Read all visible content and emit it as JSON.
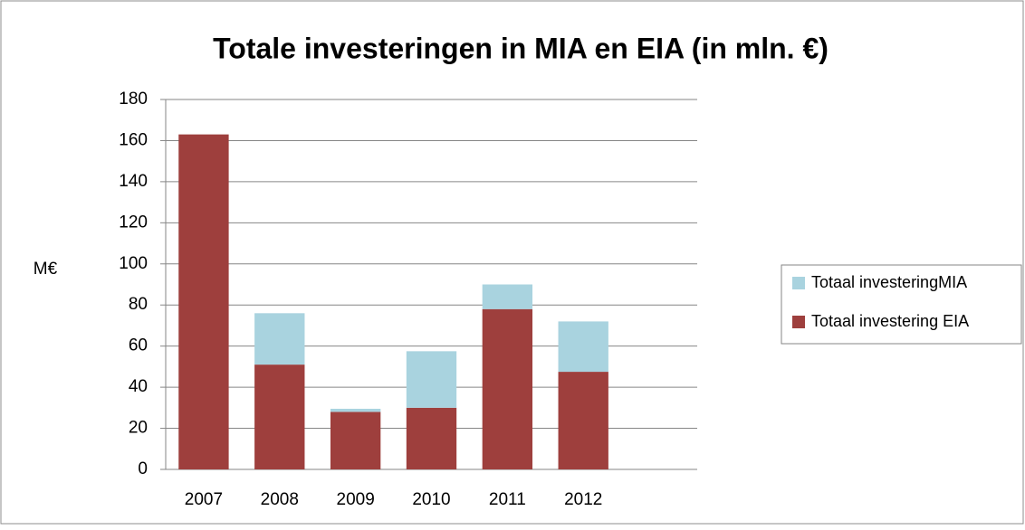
{
  "chart_data": {
    "type": "stacked_bar",
    "title": "Totale investeringen in MIA en EIA (in mln. €)",
    "y_label": "M€",
    "categories": [
      "2007",
      "2008",
      "2009",
      "2010",
      "2011",
      "2012",
      null
    ],
    "series": [
      {
        "name": "Totaal investering EIA",
        "color": "#9e3f3d",
        "values": [
          163,
          51,
          28,
          30,
          78,
          47.5,
          null
        ]
      },
      {
        "name": "Totaal investeringMIA",
        "color": "#a9d3df",
        "values": [
          0,
          25,
          1.5,
          27.5,
          12,
          24.5,
          null
        ]
      }
    ],
    "ylim": [
      0,
      180
    ],
    "yticks": [
      0,
      20,
      40,
      60,
      80,
      100,
      120,
      140,
      160,
      180
    ],
    "grid": true,
    "legend": "right"
  }
}
